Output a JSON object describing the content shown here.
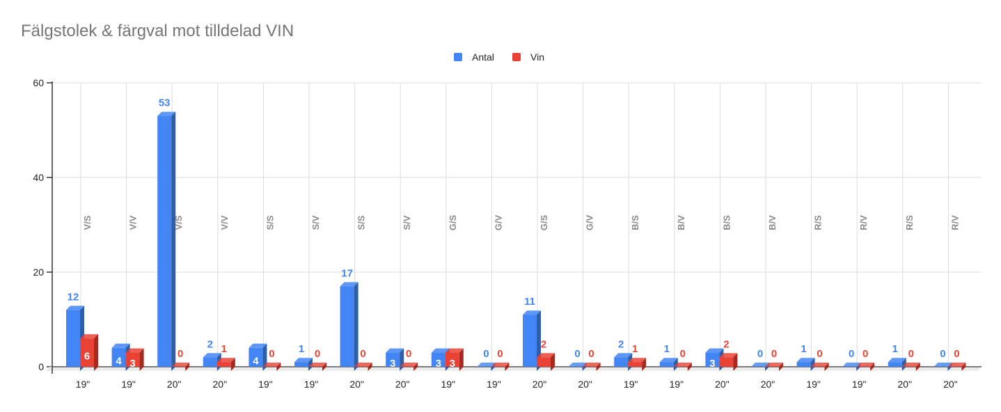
{
  "chart_data": {
    "type": "bar",
    "title": "Fälgstolek & färgval mot tilldelad VIN",
    "xlabel": "",
    "ylabel": "",
    "ylim": [
      0,
      60
    ],
    "yticks": [
      "0",
      "20",
      "40",
      "60"
    ],
    "grid": true,
    "legend_position": "top",
    "categories": [
      "19\"",
      "19\"",
      "20\"",
      "20\"",
      "19\"",
      "19\"",
      "20\"",
      "20\"",
      "19\"",
      "19\"",
      "20\"",
      "20\"",
      "19\"",
      "19\"",
      "20\"",
      "20\"",
      "19\"",
      "19\"",
      "20\"",
      "20\""
    ],
    "group_labels": [
      "V/S",
      "V/V",
      "V/S",
      "V/V",
      "S/S",
      "S/V",
      "S/S",
      "S/V",
      "G/S",
      "G/V",
      "G/S",
      "G/V",
      "B/S",
      "B/V",
      "B/S",
      "B/V",
      "R/S",
      "R/V",
      "R/S",
      "R/V"
    ],
    "series": [
      {
        "name": "Antal",
        "color": "#4285f4",
        "side": "#2f5ea8",
        "values": [
          12,
          4,
          53,
          2,
          4,
          1,
          17,
          3,
          3,
          0,
          11,
          0,
          2,
          1,
          3,
          0,
          1,
          0,
          1,
          0
        ]
      },
      {
        "name": "Vin",
        "color": "#ea4335",
        "side": "#a52a20",
        "values": [
          6,
          3,
          0,
          1,
          0,
          0,
          0,
          0,
          3,
          0,
          2,
          0,
          1,
          0,
          2,
          0,
          0,
          0,
          0,
          0
        ]
      }
    ]
  }
}
